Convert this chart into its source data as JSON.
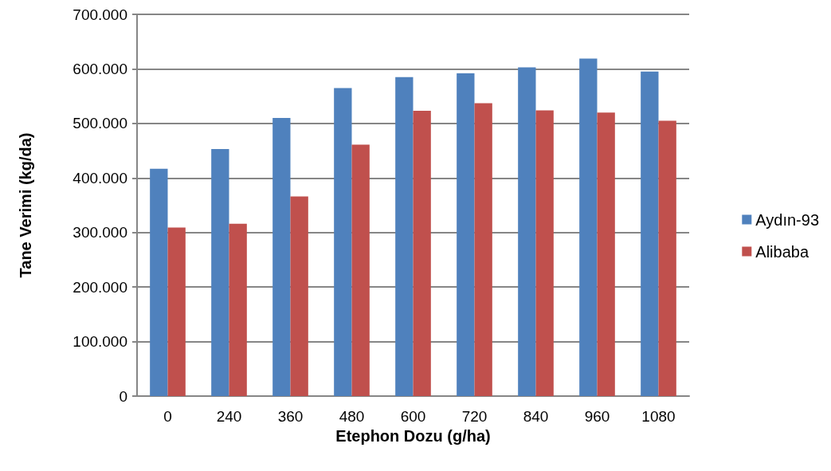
{
  "chart_data": {
    "type": "bar",
    "xlabel": "Etephon Dozu (g/ha)",
    "ylabel": "Tane Verimi (kg/da)",
    "categories": [
      "0",
      "240",
      "360",
      "480",
      "600",
      "720",
      "840",
      "960",
      "1080"
    ],
    "series": [
      {
        "name": "Aydın-93",
        "color": "#4f81bd",
        "values": [
          417000,
          453000,
          510000,
          565000,
          585000,
          592000,
          603000,
          619000,
          595000
        ]
      },
      {
        "name": "Alibaba",
        "color": "#c0504d",
        "values": [
          309000,
          316000,
          366000,
          461000,
          523000,
          537000,
          524000,
          520000,
          505000
        ]
      }
    ],
    "ylim": [
      0,
      700000
    ],
    "yticks": [
      0,
      {
        "value": 100000,
        "label": "100.000"
      },
      {
        "value": 200000,
        "label": "200.000"
      },
      {
        "value": 300000,
        "label": "300.000"
      },
      {
        "value": 400000,
        "label": "400.000"
      },
      {
        "value": 500000,
        "label": "500.000"
      },
      {
        "value": 600000,
        "label": "600.000"
      },
      {
        "value": 700000,
        "label": "700.000"
      }
    ],
    "grid": "y",
    "legend": "right"
  }
}
